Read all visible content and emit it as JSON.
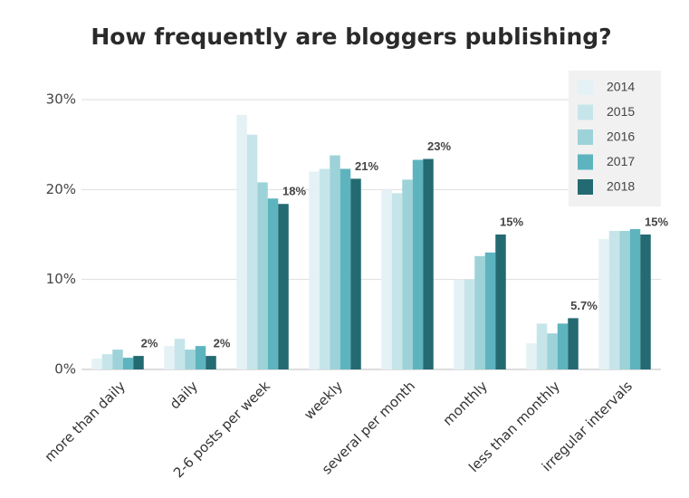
{
  "chart_data": {
    "type": "bar",
    "title": "How frequently are bloggers publishing?",
    "categories": [
      "more than daily",
      "daily",
      "2-6 posts per week",
      "weekly",
      "several per month",
      "monthly",
      "less than monthly",
      "irregular intervals"
    ],
    "series": [
      {
        "name": "2014",
        "color": "#e4f2f5",
        "values": [
          1.2,
          2.6,
          28.3,
          22.0,
          20.0,
          10.0,
          2.9,
          14.5
        ]
      },
      {
        "name": "2015",
        "color": "#c6e5ea",
        "values": [
          1.7,
          3.4,
          26.1,
          22.3,
          19.6,
          10.0,
          5.1,
          15.4
        ]
      },
      {
        "name": "2016",
        "color": "#9dd2d8",
        "values": [
          2.2,
          2.2,
          20.8,
          23.8,
          21.1,
          12.6,
          4.0,
          15.4
        ]
      },
      {
        "name": "2017",
        "color": "#5db4bf",
        "values": [
          1.3,
          2.6,
          19.0,
          22.3,
          23.3,
          13.0,
          5.1,
          15.6
        ]
      },
      {
        "name": "2018",
        "color": "#246a72",
        "values": [
          1.5,
          1.5,
          18.4,
          21.2,
          23.4,
          15.0,
          5.7,
          15.0
        ],
        "value_labels": [
          "2%",
          "2%",
          "18%",
          "21%",
          "23%",
          "15%",
          "5.7%",
          "15%"
        ]
      }
    ],
    "ylim": [
      0,
      30
    ],
    "yticks": [
      {
        "value": 0,
        "label": "0%"
      },
      {
        "value": 10,
        "label": "10%"
      },
      {
        "value": 20,
        "label": "20%"
      },
      {
        "value": 30,
        "label": "30%"
      }
    ],
    "grid": true,
    "legend": "upper right"
  }
}
